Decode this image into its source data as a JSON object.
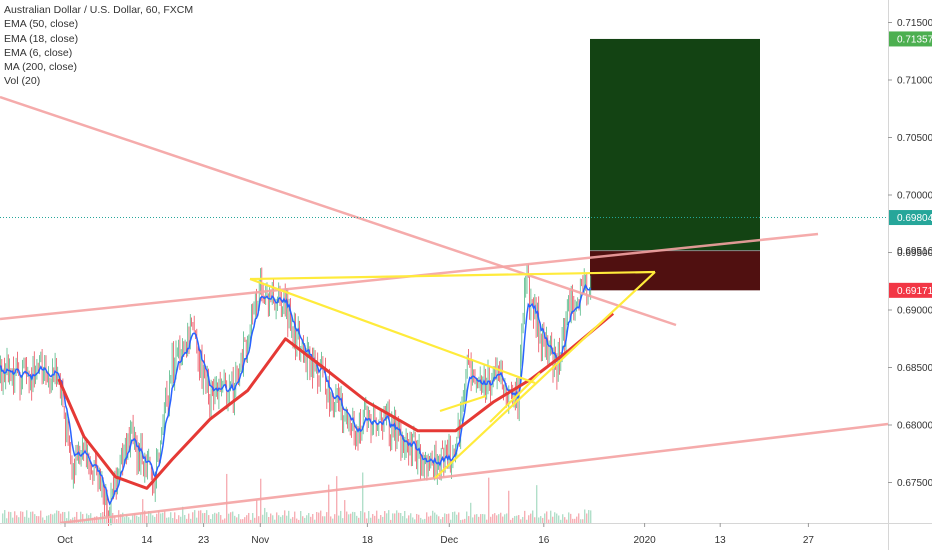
{
  "legend": {
    "symbol": "Australian Dollar / U.S. Dollar, 60, FXCM",
    "ema50": "EMA (50, close)",
    "ema18": "EMA (18, close)",
    "ema6": "EMA (6, close)",
    "ma200": "MA (200, close)",
    "vol": "Vol (20)"
  },
  "colors": {
    "up_candle": "#53b987",
    "down_candle": "#eb4d5c",
    "ema_fast": "#2962ff",
    "ma_slow": "#e53935",
    "trendline_pink": "#f4a3a3",
    "pattern_yellow": "#ffeb3b",
    "target_zone": "#0b3d0b",
    "stop_zone": "#4a0808",
    "last_price_line": "#26a69a",
    "tag_target": "#4caf50",
    "tag_stop": "#f23645",
    "tag_last": "#26a69a"
  },
  "price_tags": {
    "target": "0.71357",
    "last": "0.69804",
    "entry": "0.69516",
    "stop": "0.69171"
  },
  "chart_data": {
    "type": "candlestick",
    "symbol": "Australian Dollar / U.S. Dollar",
    "timeframe": "60",
    "source": "FXCM",
    "ylim": [
      0.671,
      0.716
    ],
    "y_ticks": [
      "0.71500",
      "0.71000",
      "0.70500",
      "0.70000",
      "0.69500",
      "0.69000",
      "0.68500",
      "0.68000",
      "0.67500"
    ],
    "x_ticks": [
      "Oct",
      "14",
      "23",
      "Nov",
      "18",
      "Dec",
      "16",
      "2020",
      "13",
      "27"
    ],
    "price_path": [
      {
        "date": "2019-09-30",
        "price": 0.6845
      },
      {
        "date": "2019-10-02",
        "price": 0.6762
      },
      {
        "date": "2019-10-04",
        "price": 0.6775
      },
      {
        "date": "2019-10-08",
        "price": 0.673
      },
      {
        "date": "2019-10-11",
        "price": 0.6795
      },
      {
        "date": "2019-10-15",
        "price": 0.6752
      },
      {
        "date": "2019-10-18",
        "price": 0.685
      },
      {
        "date": "2019-10-21",
        "price": 0.688
      },
      {
        "date": "2019-10-24",
        "price": 0.6825
      },
      {
        "date": "2019-10-28",
        "price": 0.683
      },
      {
        "date": "2019-10-31",
        "price": 0.69
      },
      {
        "date": "2019-11-01",
        "price": 0.692
      },
      {
        "date": "2019-11-05",
        "price": 0.6905
      },
      {
        "date": "2019-11-08",
        "price": 0.686
      },
      {
        "date": "2019-11-11",
        "price": 0.684
      },
      {
        "date": "2019-11-15",
        "price": 0.68
      },
      {
        "date": "2019-11-20",
        "price": 0.6805
      },
      {
        "date": "2019-11-25",
        "price": 0.678
      },
      {
        "date": "2019-11-29",
        "price": 0.6765
      },
      {
        "date": "2019-12-02",
        "price": 0.6775
      },
      {
        "date": "2019-12-04",
        "price": 0.6855
      },
      {
        "date": "2019-12-06",
        "price": 0.684
      },
      {
        "date": "2019-12-10",
        "price": 0.6835
      },
      {
        "date": "2019-12-12",
        "price": 0.682
      },
      {
        "date": "2019-12-13",
        "price": 0.6925
      },
      {
        "date": "2019-12-16",
        "price": 0.687
      },
      {
        "date": "2019-12-18",
        "price": 0.685
      },
      {
        "date": "2019-12-20",
        "price": 0.69
      },
      {
        "date": "2019-12-23",
        "price": 0.6925
      },
      {
        "date": "2019-12-26",
        "price": 0.695
      },
      {
        "date": "2019-12-27",
        "price": 0.698
      }
    ],
    "moving_averages": [
      {
        "label": "MA (200, close)",
        "points": [
          {
            "date": "2019-09-30",
            "price": 0.684
          },
          {
            "date": "2019-10-04",
            "price": 0.679
          },
          {
            "date": "2019-10-09",
            "price": 0.6755
          },
          {
            "date": "2019-10-14",
            "price": 0.6745
          },
          {
            "date": "2019-10-18",
            "price": 0.677
          },
          {
            "date": "2019-10-24",
            "price": 0.6805
          },
          {
            "date": "2019-10-30",
            "price": 0.683
          },
          {
            "date": "2019-11-05",
            "price": 0.6875
          },
          {
            "date": "2019-11-11",
            "price": 0.685
          },
          {
            "date": "2019-11-18",
            "price": 0.682
          },
          {
            "date": "2019-11-26",
            "price": 0.6795
          },
          {
            "date": "2019-12-02",
            "price": 0.6795
          },
          {
            "date": "2019-12-08",
            "price": 0.682
          },
          {
            "date": "2019-12-14",
            "price": 0.684
          },
          {
            "date": "2019-12-20",
            "price": 0.6865
          },
          {
            "date": "2019-12-27",
            "price": 0.6897
          }
        ]
      }
    ],
    "drawings": {
      "long_position": {
        "target": 0.71357,
        "entry": 0.69516,
        "stop": 0.69171
      },
      "last_price": 0.69804
    }
  }
}
